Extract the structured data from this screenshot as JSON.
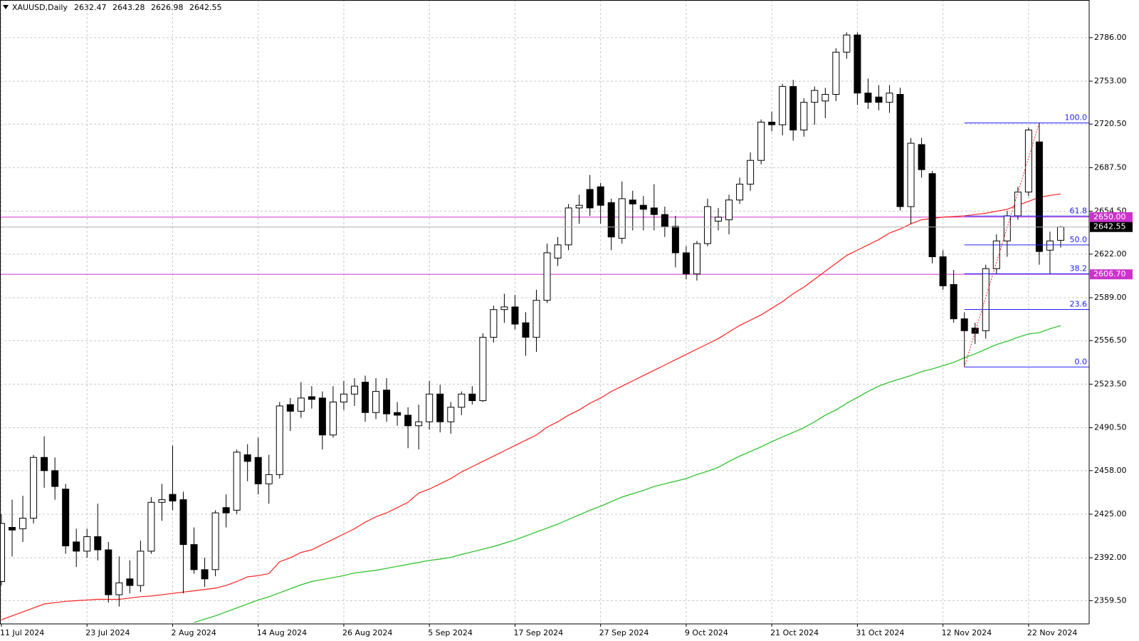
{
  "chart_data": {
    "type": "candlestick",
    "title": "XAUUSD,Daily",
    "categories": [
      "11 Jul 2024",
      null,
      null,
      null,
      null,
      null,
      null,
      null,
      "23 Jul 2024",
      null,
      null,
      null,
      null,
      null,
      null,
      null,
      "2 Aug 2024",
      null,
      null,
      null,
      null,
      null,
      null,
      null,
      "14 Aug 2024",
      null,
      null,
      null,
      null,
      null,
      null,
      null,
      "26 Aug 2024",
      null,
      null,
      null,
      null,
      null,
      null,
      null,
      "5 Sep 2024",
      null,
      null,
      null,
      null,
      null,
      null,
      null,
      "17 Sep 2024",
      null,
      null,
      null,
      null,
      null,
      null,
      null,
      "27 Sep 2024",
      null,
      null,
      null,
      null,
      null,
      null,
      null,
      "9 Oct 2024",
      null,
      null,
      null,
      null,
      null,
      null,
      null,
      "21 Oct 2024",
      null,
      null,
      null,
      null,
      null,
      null,
      null,
      "31 Oct 2024",
      null,
      null,
      null,
      null,
      null,
      null,
      null,
      "12 Nov 2024",
      null,
      null,
      null,
      null,
      null,
      null,
      null,
      "22 Nov 2024",
      null,
      null,
      null
    ],
    "series": [
      {
        "up_color": "#ffffff",
        "down_color": "#000000",
        "open": [
          2374,
          2415,
          2414,
          2422,
          2468,
          2458,
          2444,
          2404,
          2397,
          2408,
          2398,
          2364,
          2376,
          2371,
          2397,
          2434,
          2440,
          2436,
          2402,
          2383,
          2383,
          2430,
          2428,
          2470,
          2468,
          2448,
          2455,
          2508,
          2503,
          2514,
          2513,
          2485,
          2510,
          2516,
          2525,
          2502,
          2519,
          2502,
          2500,
          2492,
          2495,
          2516,
          2495,
          2506,
          2516,
          2511,
          2559,
          2580,
          2582,
          2570,
          2559,
          2587,
          2619,
          2629,
          2657,
          2671,
          2673,
          2661,
          2634,
          2663,
          2659,
          2657,
          2652,
          2643,
          2623,
          2607,
          2630,
          2647,
          2648,
          2663,
          2675,
          2693,
          2722,
          2720,
          2749,
          2716,
          2737,
          2738,
          2743,
          2775,
          2788,
          2744,
          2741,
          2737,
          2743,
          2658,
          2705,
          2683,
          2620,
          2599,
          2573,
          2566,
          2564,
          2611,
          2632,
          2651,
          2669,
          2707,
          2625,
          2632.47
        ],
        "high": [
          2425,
          2436,
          2439,
          2470,
          2484,
          2468,
          2448,
          2414,
          2414,
          2433,
          2404,
          2393,
          2390,
          2405,
          2438,
          2448,
          2477,
          2442,
          2415,
          2392,
          2428,
          2440,
          2474,
          2478,
          2483,
          2470,
          2510,
          2513,
          2525,
          2522,
          2518,
          2522,
          2526,
          2528,
          2530,
          2528,
          2528,
          2510,
          2506,
          2508,
          2526,
          2523,
          2510,
          2518,
          2522,
          2562,
          2583,
          2592,
          2591,
          2578,
          2595,
          2630,
          2635,
          2660,
          2667,
          2682,
          2676,
          2664,
          2677,
          2670,
          2666,
          2675,
          2658,
          2651,
          2628,
          2632,
          2664,
          2657,
          2667,
          2680,
          2699,
          2724,
          2730,
          2751,
          2754,
          2740,
          2749,
          2748,
          2778,
          2790,
          2790,
          2755,
          2750,
          2750,
          2748,
          2710,
          2710,
          2685,
          2625,
          2610,
          2578,
          2570,
          2614,
          2637,
          2655,
          2673,
          2718,
          2721.4,
          2639,
          2643.28
        ],
        "low": [
          2371,
          2393,
          2404,
          2418,
          2445,
          2436,
          2395,
          2385,
          2392,
          2390,
          2358,
          2355,
          2365,
          2366,
          2395,
          2420,
          2428,
          2365,
          2380,
          2370,
          2378,
          2415,
          2425,
          2450,
          2440,
          2433,
          2452,
          2488,
          2498,
          2505,
          2474,
          2483,
          2504,
          2507,
          2495,
          2497,
          2495,
          2492,
          2475,
          2474,
          2489,
          2487,
          2486,
          2500,
          2508,
          2510,
          2555,
          2570,
          2565,
          2545,
          2548,
          2585,
          2613,
          2625,
          2645,
          2651,
          2645,
          2625,
          2630,
          2640,
          2640,
          2640,
          2635,
          2612,
          2603,
          2602,
          2628,
          2640,
          2637,
          2660,
          2670,
          2690,
          2715,
          2712,
          2708,
          2711,
          2720,
          2725,
          2738,
          2770,
          2735,
          2732,
          2731,
          2729,
          2655,
          2645,
          2680,
          2615,
          2595,
          2570,
          2536.5,
          2554,
          2558,
          2607,
          2620,
          2648,
          2666,
          2614,
          2607,
          2626.98
        ],
        "close": [
          2418,
          2413,
          2422,
          2468,
          2458,
          2446,
          2401,
          2397,
          2408,
          2398,
          2364,
          2373,
          2371,
          2397,
          2434,
          2436,
          2435,
          2402,
          2383,
          2376,
          2426,
          2426,
          2472,
          2465,
          2448,
          2455,
          2507,
          2503,
          2513,
          2512,
          2485,
          2510,
          2516,
          2522,
          2502,
          2518,
          2501,
          2500,
          2492,
          2495,
          2516,
          2495,
          2506,
          2516,
          2511,
          2559,
          2580,
          2582,
          2569,
          2559,
          2587,
          2623,
          2629,
          2657,
          2659,
          2657,
          2659,
          2635,
          2664,
          2660,
          2656,
          2652,
          2643,
          2623,
          2607,
          2630,
          2658,
          2650,
          2663,
          2675,
          2693,
          2722,
          2720,
          2749,
          2716,
          2737,
          2746,
          2743,
          2775,
          2788,
          2744,
          2737,
          2737,
          2744,
          2658,
          2706,
          2686,
          2620,
          2598,
          2573,
          2564,
          2562,
          2611,
          2632,
          2651,
          2669,
          2716,
          2624,
          2632,
          2642.55
        ]
      }
    ],
    "overlays": [
      {
        "color": "#ff2020",
        "values": [
          2345,
          2348,
          2351,
          2354,
          2357,
          2358,
          2359,
          2359.5,
          2360,
          2360.5,
          2360.5,
          2360.5,
          2361.5,
          2362.5,
          2363,
          2364,
          2365,
          2366,
          2367,
          2368,
          2369,
          2371,
          2374,
          2377.5,
          2378.5,
          2380,
          2389,
          2392,
          2396,
          2398,
          2402,
          2406,
          2410,
          2414,
          2419,
          2423,
          2426,
          2430,
          2434,
          2441,
          2444,
          2448,
          2452,
          2457,
          2461,
          2465,
          2469,
          2473,
          2477,
          2481,
          2485,
          2491,
          2495,
          2500,
          2504,
          2509,
          2513,
          2518,
          2522,
          2526,
          2530,
          2534,
          2538,
          2542,
          2546,
          2550,
          2554,
          2558,
          2563,
          2568,
          2572,
          2576,
          2581,
          2586,
          2592,
          2597,
          2603,
          2609,
          2615,
          2621,
          2625,
          2629,
          2633,
          2638,
          2641,
          2645,
          2648,
          2649,
          2650,
          2650.5,
          2651,
          2652,
          2653,
          2654.5,
          2656,
          2659,
          2662,
          2665,
          2666.5,
          2667.6
        ]
      },
      {
        "color": "#20c020",
        "values": [
          null,
          null,
          null,
          null,
          null,
          null,
          null,
          null,
          null,
          null,
          null,
          null,
          null,
          null,
          null,
          null,
          null,
          null,
          2343,
          2345.5,
          2348,
          2351,
          2354,
          2357,
          2360,
          2362.5,
          2365.5,
          2368.5,
          2371.5,
          2374,
          2375.5,
          2377,
          2378.5,
          2380.5,
          2381.5,
          2382.5,
          2384,
          2385.5,
          2387,
          2388.5,
          2390,
          2391,
          2392.3,
          2394.5,
          2396.5,
          2398.5,
          2400.5,
          2403,
          2405.5,
          2408.5,
          2411.5,
          2414.5,
          2417.5,
          2421,
          2424.5,
          2428,
          2431,
          2434.5,
          2438,
          2440.5,
          2443,
          2446,
          2448,
          2450,
          2452,
          2455,
          2457.5,
          2460.5,
          2465,
          2469,
          2472.5,
          2476,
          2480,
          2483.5,
          2487,
          2490.5,
          2495,
          2500,
          2504,
          2509,
          2513.5,
          2518,
          2522,
          2525,
          2527.5,
          2530,
          2533,
          2535,
          2537.5,
          2540,
          2543.5,
          2546.5,
          2550,
          2553.5,
          2556,
          2559,
          2561.5,
          2562.5,
          2565.5,
          2567.8
        ]
      }
    ],
    "fibonacci": {
      "color": "#2020ff",
      "levels": [
        {
          "label": "100.0",
          "value": 2721.4
        },
        {
          "label": "61.8",
          "value": 2650.8
        },
        {
          "label": "50.0",
          "value": 2629
        },
        {
          "label": "38.2",
          "value": 2607.1
        },
        {
          "label": "23.6",
          "value": 2580.1
        },
        {
          "label": "0.0",
          "value": 2536.5
        }
      ]
    },
    "hlines": [
      {
        "value": 2650,
        "label": "2650.00",
        "color": "#cc33cc"
      },
      {
        "value": 2606.7,
        "label": "2606.70",
        "color": "#cc33cc"
      }
    ],
    "last_price_label": "2642.55",
    "ylim": [
      2341.9,
      2814.5
    ],
    "yticks": [
      {
        "value": 2786,
        "label": "2786.00"
      },
      {
        "value": 2753,
        "label": "2753.00"
      },
      {
        "value": 2720.5,
        "label": "2720.50"
      },
      {
        "value": 2687.5,
        "label": "2687.50"
      },
      {
        "value": 2654.5,
        "label": "2654.50"
      },
      {
        "value": 2622,
        "label": "2622.00"
      },
      {
        "value": 2589,
        "label": "2589.00"
      },
      {
        "value": 2556.5,
        "label": "2556.50"
      },
      {
        "value": 2523.5,
        "label": "2523.50"
      },
      {
        "value": 2490.5,
        "label": "2490.50"
      },
      {
        "value": 2458,
        "label": "2458.00"
      },
      {
        "value": 2425,
        "label": "2425.00"
      },
      {
        "value": 2392,
        "label": "2392.00"
      },
      {
        "value": 2359.5,
        "label": "2359.50"
      }
    ],
    "grid": true
  }
}
